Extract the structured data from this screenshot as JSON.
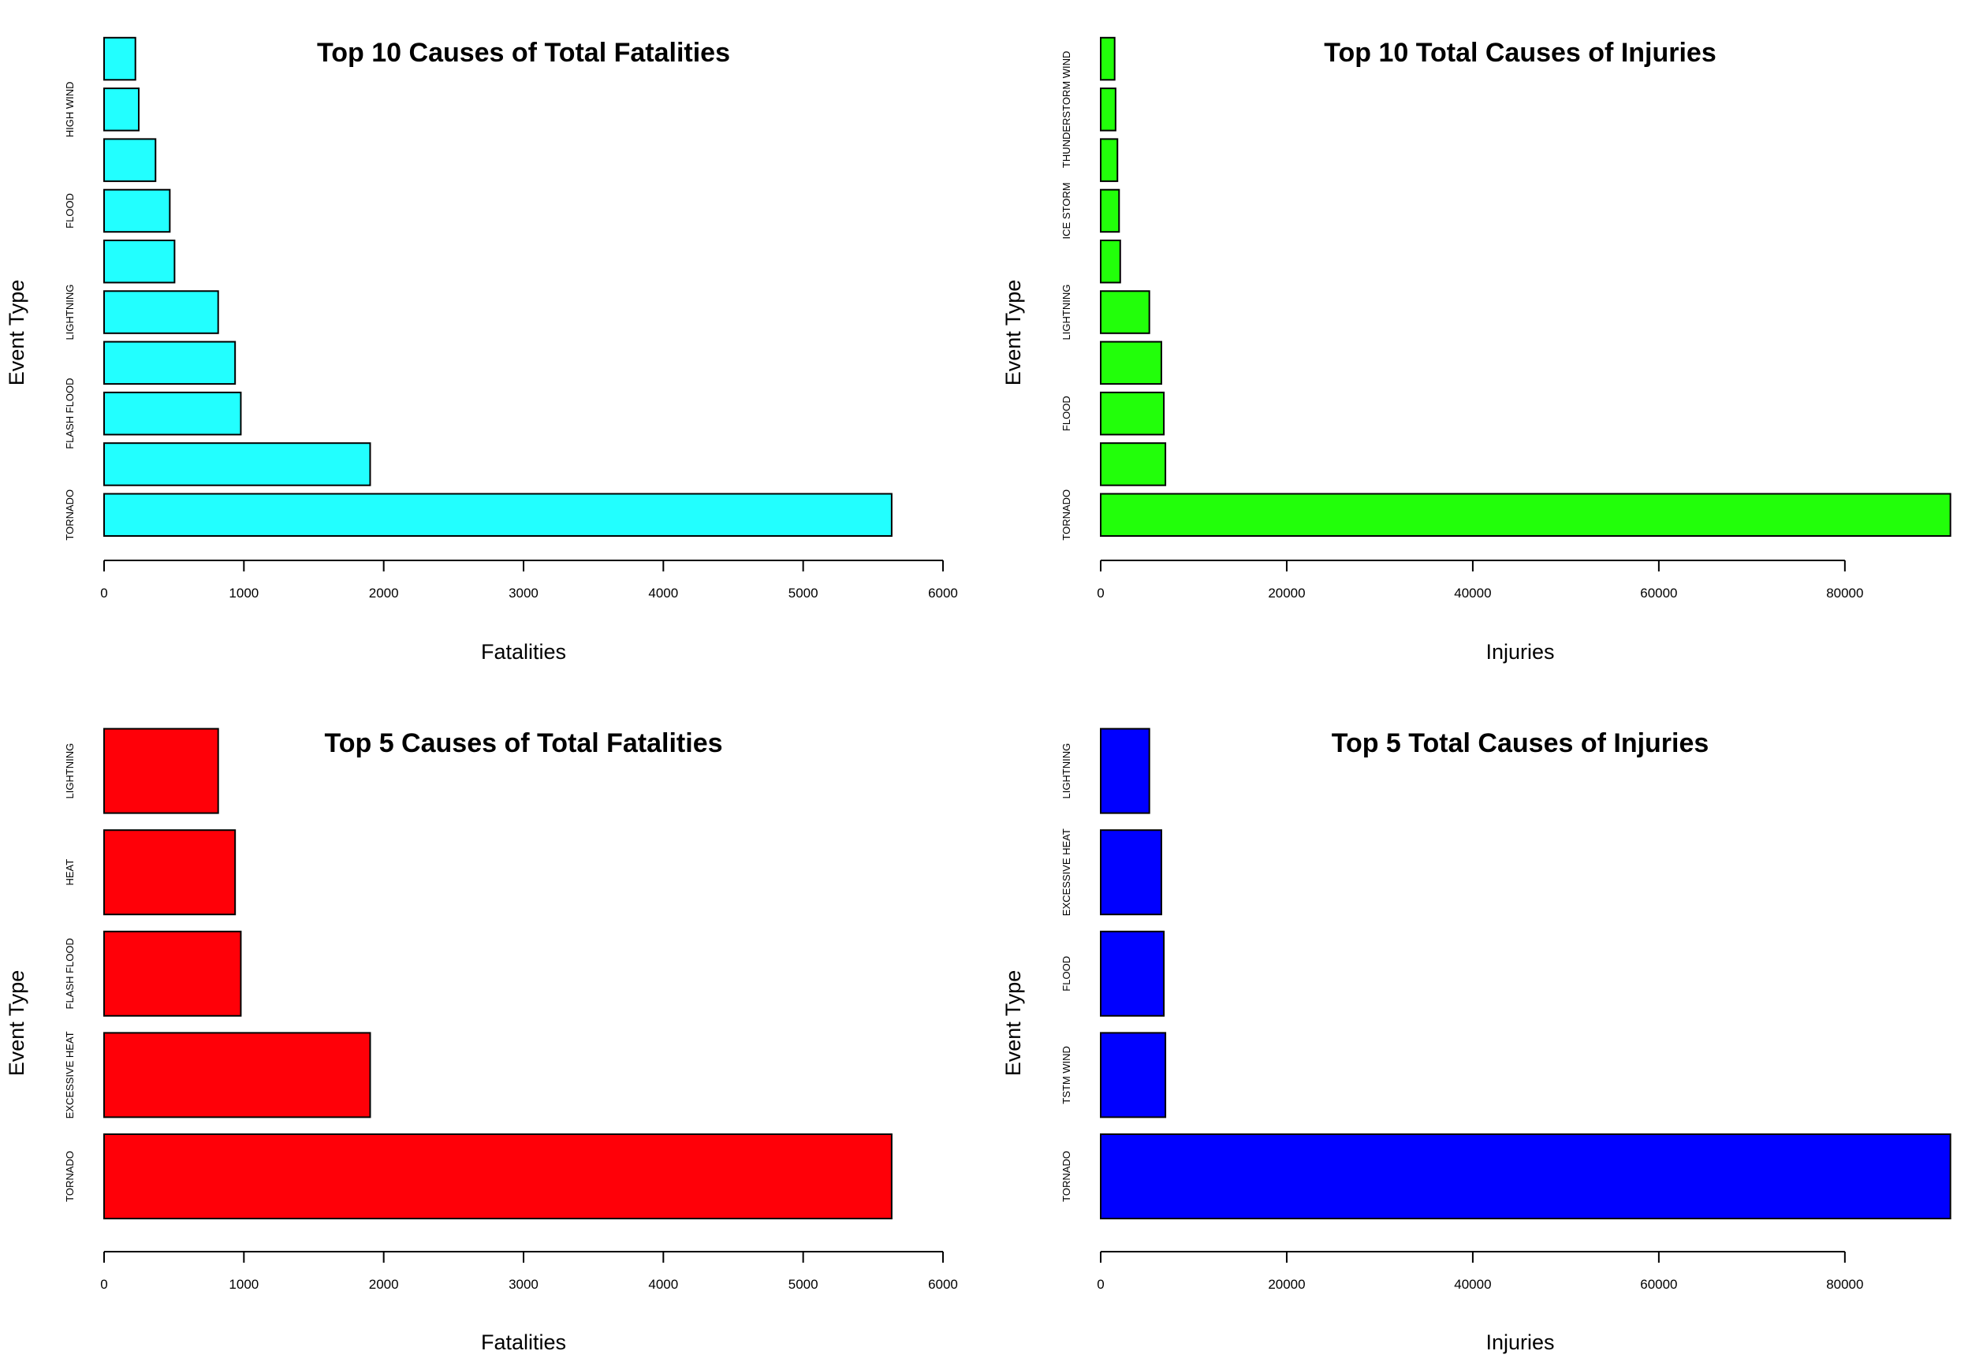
{
  "chart_data": [
    {
      "type": "bar",
      "orientation": "horizontal",
      "title": "Top 10 Causes of Total Fatalities",
      "xlabel": "Fatalities",
      "ylabel": "Event Type",
      "color": "#22ffff",
      "xlim": [
        0,
        6000
      ],
      "xticks": [
        0,
        1000,
        2000,
        3000,
        4000,
        5000,
        6000
      ],
      "categories": [
        "TORNADO",
        "",
        "FLASH FLOOD",
        "",
        "LIGHTNING",
        "",
        "FLOOD",
        "",
        "HIGH WIND",
        ""
      ],
      "values": [
        5633,
        1903,
        978,
        937,
        816,
        504,
        470,
        368,
        248,
        224
      ]
    },
    {
      "type": "bar",
      "orientation": "horizontal",
      "title": "Top 10 Total Causes of Injuries",
      "xlabel": "Injuries",
      "ylabel": "Event Type",
      "color": "#22ff0a",
      "xlim": [
        0,
        91346
      ],
      "xticks": [
        0,
        20000,
        40000,
        60000,
        80000
      ],
      "categories": [
        "TORNADO",
        "",
        "FLOOD",
        "",
        "LIGHTNING",
        "",
        "ICE STORM",
        "",
        "THUNDERSTORM WIND",
        ""
      ],
      "values": [
        91346,
        6957,
        6789,
        6525,
        5230,
        2100,
        1975,
        1800,
        1600,
        1500
      ]
    },
    {
      "type": "bar",
      "orientation": "horizontal",
      "title": "Top 5 Causes of Total Fatalities",
      "xlabel": "Fatalities",
      "ylabel": "Event Type",
      "color": "#ff0008",
      "xlim": [
        0,
        6000
      ],
      "xticks": [
        0,
        1000,
        2000,
        3000,
        4000,
        5000,
        6000
      ],
      "categories": [
        "TORNADO",
        "EXCESSIVE HEAT",
        "FLASH FLOOD",
        "HEAT",
        "LIGHTNING"
      ],
      "values": [
        5633,
        1903,
        978,
        937,
        816
      ]
    },
    {
      "type": "bar",
      "orientation": "horizontal",
      "title": "Top 5 Total Causes of Injuries",
      "xlabel": "Injuries",
      "ylabel": "Event Type",
      "color": "#0000ff",
      "xlim": [
        0,
        91346
      ],
      "xticks": [
        0,
        20000,
        40000,
        60000,
        80000
      ],
      "categories": [
        "TORNADO",
        "TSTM WIND",
        "FLOOD",
        "EXCESSIVE HEAT",
        "LIGHTNING"
      ],
      "values": [
        91346,
        6957,
        6789,
        6525,
        5230
      ]
    }
  ]
}
